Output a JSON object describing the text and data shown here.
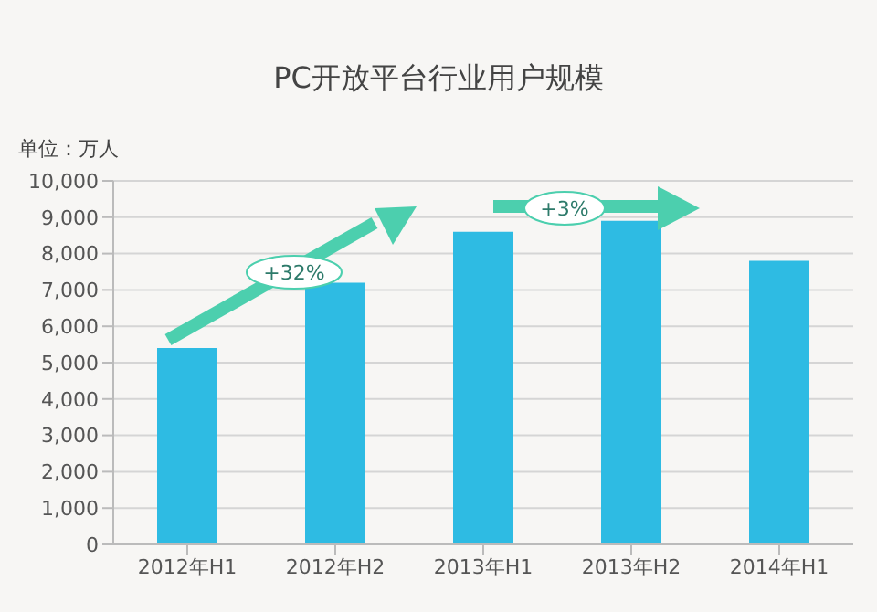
{
  "chart_data": {
    "type": "bar",
    "title": "PC开放平台行业用户规模",
    "ylabel": "单位：万人",
    "categories": [
      "2012年H1",
      "2012年H2",
      "2013年H1",
      "2013年H2",
      "2014年H1"
    ],
    "values": [
      5400,
      7200,
      8600,
      8900,
      7800
    ],
    "color": "#2ebbe3",
    "ylim": [
      0,
      10000
    ],
    "yticks": [
      0,
      {
        "value": 1000,
        "label": "1,000"
      },
      {
        "value": 2000,
        "label": "2,000"
      },
      {
        "value": 3000,
        "label": "3,000"
      },
      {
        "value": 4000,
        "label": "4,000"
      },
      {
        "value": 5000,
        "label": "5,000"
      },
      {
        "value": 6000,
        "label": "6,000"
      },
      {
        "value": 7000,
        "label": "7,000"
      },
      {
        "value": 8000,
        "label": "8,000"
      },
      {
        "value": 9000,
        "label": "9,000"
      },
      {
        "value": 10000,
        "label": "10,000"
      }
    ],
    "grid": "y",
    "annotations": [
      "+32%",
      "+3%"
    ]
  }
}
